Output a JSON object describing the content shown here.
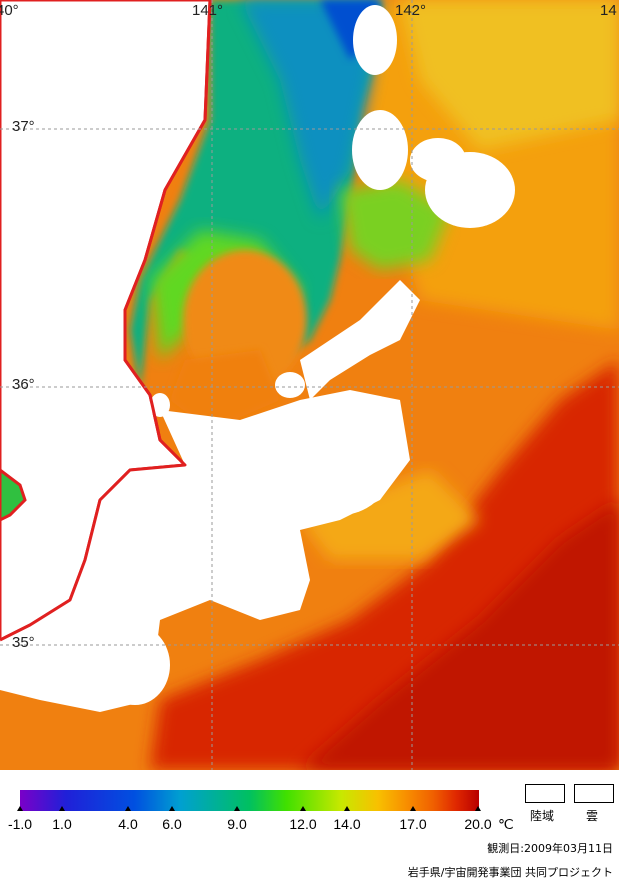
{
  "map": {
    "longitude_labels": [
      "40°",
      "141°",
      "142°",
      "14"
    ],
    "latitude_labels": [
      "37°",
      "36°",
      "35°"
    ],
    "colors": {
      "land": "#ffffff",
      "cloud": "#ffffff",
      "coastline": "#e02020",
      "graticule": "#9a9a9a"
    }
  },
  "colorbar": {
    "ticks": [
      "-1.0",
      "1.0",
      "4.0",
      "6.0",
      "9.0",
      "12.0",
      "14.0",
      "17.0",
      "20.0"
    ],
    "unit": "℃"
  },
  "legend": {
    "land_label": "陸域",
    "cloud_label": "雲"
  },
  "footer": {
    "observation_date": "観測日:2009年03月11日",
    "credit": "岩手県/宇宙開発事業団 共同プロジェクト"
  }
}
